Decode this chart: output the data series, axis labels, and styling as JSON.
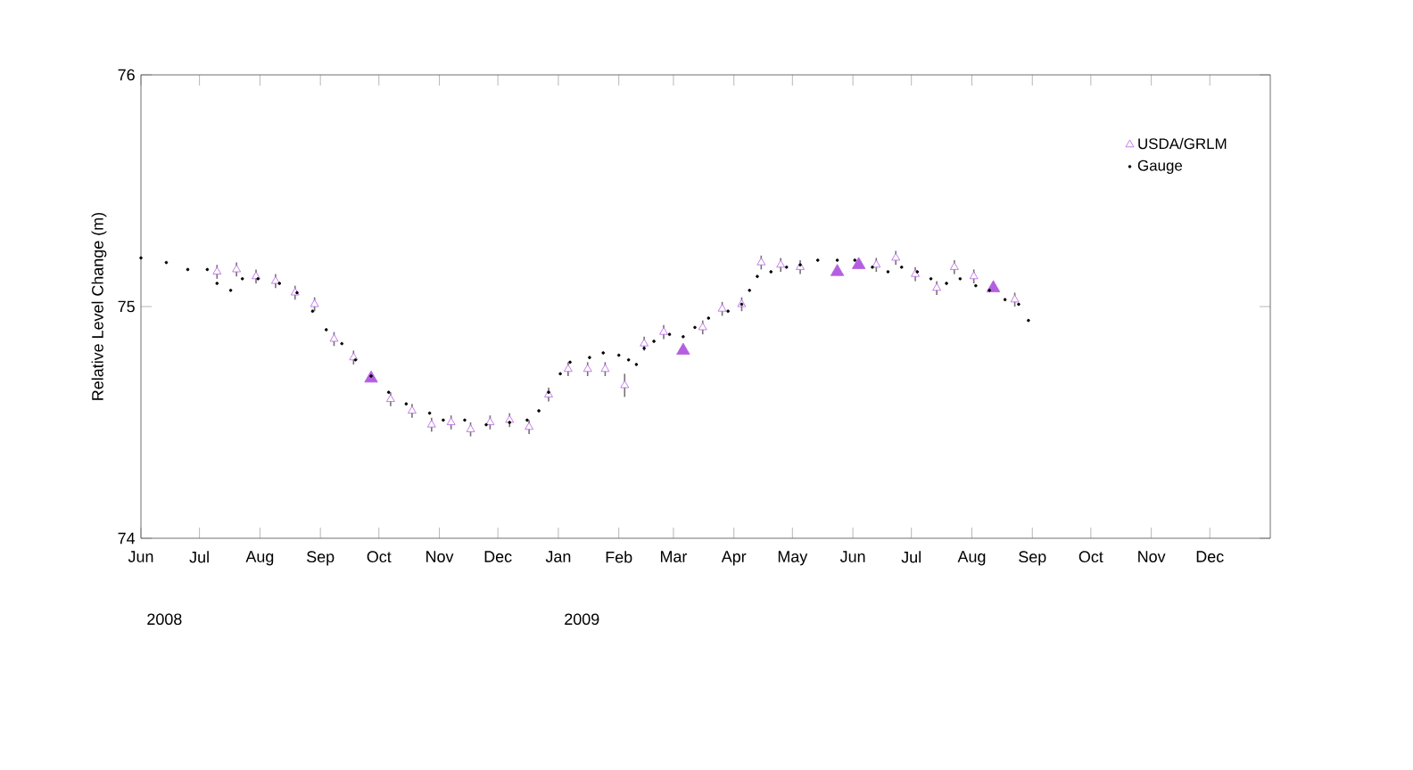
{
  "chart_data": {
    "type": "scatter",
    "ylabel": "Relative Level Change (m)",
    "xlim": [
      "2008-06-01",
      "2010-01-01"
    ],
    "ylim": [
      74,
      76
    ],
    "yticks": [
      74,
      75,
      76
    ],
    "xticks": [
      {
        "value": "2008-06-01",
        "label": "Jun"
      },
      {
        "value": "2008-07-01",
        "label": "Jul"
      },
      {
        "value": "2008-08-01",
        "label": "Aug"
      },
      {
        "value": "2008-09-01",
        "label": "Sep"
      },
      {
        "value": "2008-10-01",
        "label": "Oct"
      },
      {
        "value": "2008-11-01",
        "label": "Nov"
      },
      {
        "value": "2008-12-01",
        "label": "Dec"
      },
      {
        "value": "2009-01-01",
        "label": "Jan"
      },
      {
        "value": "2009-02-01",
        "label": "Feb"
      },
      {
        "value": "2009-03-01",
        "label": "Mar"
      },
      {
        "value": "2009-04-01",
        "label": "Apr"
      },
      {
        "value": "2009-05-01",
        "label": "May"
      },
      {
        "value": "2009-06-01",
        "label": "Jun"
      },
      {
        "value": "2009-07-01",
        "label": "Jul"
      },
      {
        "value": "2009-08-01",
        "label": "Aug"
      },
      {
        "value": "2009-09-01",
        "label": "Sep"
      },
      {
        "value": "2009-10-01",
        "label": "Oct"
      },
      {
        "value": "2009-11-01",
        "label": "Nov"
      },
      {
        "value": "2009-12-01",
        "label": "Dec"
      }
    ],
    "annotations": [
      "2008",
      "2009"
    ],
    "legend": "top right",
    "grid": false,
    "series": [
      {
        "name": "USDA/GRLM",
        "marker": "triangle",
        "color": "#b45fe0",
        "x": [
          "2008-07-10",
          "2008-07-20",
          "2008-07-30",
          "2008-08-09",
          "2008-08-19",
          "2008-08-29",
          "2008-09-08",
          "2008-09-18",
          "2008-10-07",
          "2008-10-18",
          "2008-10-28",
          "2008-11-07",
          "2008-11-17",
          "2008-11-27",
          "2008-12-07",
          "2008-12-17",
          "2008-12-27",
          "2009-01-06",
          "2009-01-16",
          "2009-01-25",
          "2009-02-04",
          "2009-02-14",
          "2009-02-24",
          "2009-03-16",
          "2009-03-26",
          "2009-04-05",
          "2009-04-15",
          "2009-04-25",
          "2009-05-05",
          "2009-06-13",
          "2009-06-23",
          "2009-07-03",
          "2009-07-14",
          "2009-07-23",
          "2009-08-02",
          "2009-08-23"
        ],
        "values": [
          75.15,
          75.16,
          75.13,
          75.11,
          75.06,
          75.01,
          74.86,
          74.78,
          74.6,
          74.55,
          74.49,
          74.5,
          74.47,
          74.5,
          74.51,
          74.48,
          74.62,
          74.73,
          74.73,
          74.73,
          74.66,
          74.84,
          74.89,
          74.91,
          74.99,
          75.01,
          75.19,
          75.18,
          75.17,
          75.18,
          75.21,
          75.14,
          75.08,
          75.17,
          75.13,
          75.03
        ],
        "errors": [
          0.03,
          0.03,
          0.03,
          0.03,
          0.03,
          0.03,
          0.03,
          0.03,
          0.03,
          0.03,
          0.03,
          0.03,
          0.03,
          0.03,
          0.03,
          0.03,
          0.03,
          0.03,
          0.03,
          0.03,
          0.05,
          0.03,
          0.03,
          0.03,
          0.03,
          0.03,
          0.03,
          0.03,
          0.03,
          0.03,
          0.03,
          0.03,
          0.03,
          0.03,
          0.03,
          0.03
        ]
      },
      {
        "marker": "triangle",
        "color": "#b45fe0",
        "x": [
          "2008-09-27",
          "2009-03-06",
          "2009-05-24",
          "2009-06-04",
          "2009-08-12"
        ],
        "values": [
          74.69,
          74.81,
          75.15,
          75.18,
          75.08
        ]
      },
      {
        "name": "Gauge",
        "marker": "circle",
        "color": "#000000",
        "x": [
          "2008-06-01",
          "2008-06-14",
          "2008-06-25",
          "2008-07-05",
          "2008-07-10",
          "2008-07-17",
          "2008-07-23",
          "2008-07-31",
          "2008-08-11",
          "2008-08-20",
          "2008-08-28",
          "2008-09-04",
          "2008-09-12",
          "2008-09-19",
          "2008-09-27",
          "2008-10-06",
          "2008-10-15",
          "2008-10-27",
          "2008-11-03",
          "2008-11-14",
          "2008-11-25",
          "2008-12-07",
          "2008-12-16",
          "2008-12-22",
          "2008-12-27",
          "2009-01-02",
          "2009-01-07",
          "2009-01-17",
          "2009-01-24",
          "2009-02-01",
          "2009-02-06",
          "2009-02-10",
          "2009-02-14",
          "2009-02-19",
          "2009-02-27",
          "2009-03-06",
          "2009-03-12",
          "2009-03-19",
          "2009-03-29",
          "2009-04-05",
          "2009-04-09",
          "2009-04-13",
          "2009-04-20",
          "2009-04-28",
          "2009-05-05",
          "2009-05-14",
          "2009-05-24",
          "2009-06-02",
          "2009-06-11",
          "2009-06-19",
          "2009-06-26",
          "2009-07-04",
          "2009-07-11",
          "2009-07-19",
          "2009-07-26",
          "2009-08-03",
          "2009-08-10",
          "2009-08-18",
          "2009-08-25",
          "2009-08-30"
        ],
        "values": [
          75.21,
          75.19,
          75.16,
          75.16,
          75.1,
          75.07,
          75.12,
          75.12,
          75.1,
          75.06,
          74.98,
          74.9,
          74.84,
          74.77,
          74.7,
          74.63,
          74.58,
          74.54,
          74.51,
          74.51,
          74.49,
          74.5,
          74.51,
          74.55,
          74.63,
          74.71,
          74.76,
          74.78,
          74.8,
          74.79,
          74.77,
          74.75,
          74.82,
          74.85,
          74.88,
          74.87,
          74.91,
          74.95,
          74.98,
          75.01,
          75.07,
          75.13,
          75.15,
          75.17,
          75.18,
          75.2,
          75.2,
          75.2,
          75.17,
          75.15,
          75.17,
          75.15,
          75.12,
          75.1,
          75.12,
          75.09,
          75.07,
          75.03,
          75.01,
          74.94
        ]
      }
    ]
  }
}
